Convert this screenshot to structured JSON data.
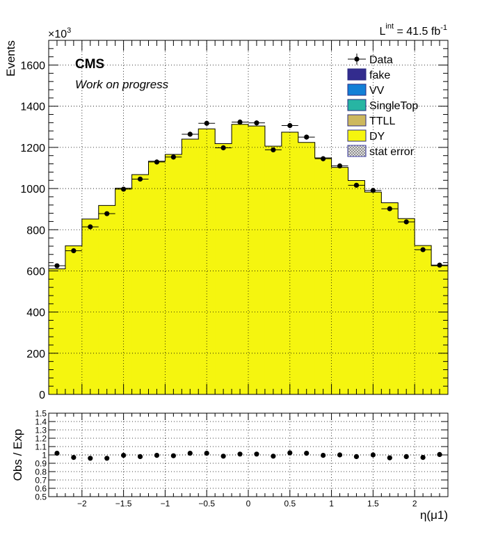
{
  "chart_data": [
    {
      "type": "bar",
      "subtype": "stacked-histogram-with-data-points",
      "title": "",
      "xlabel": "η(μ1)",
      "ylabel": "Events",
      "y_multiplier_label": "×10",
      "y_multiplier_exp": "3",
      "xlim": [
        -2.4,
        2.4
      ],
      "ylim": [
        0,
        1720
      ],
      "bin_edges": [
        -2.4,
        -2.2,
        -2.0,
        -1.8,
        -1.6,
        -1.4,
        -1.2,
        -1.0,
        -0.8,
        -0.6,
        -0.4,
        -0.2,
        0.0,
        0.2,
        0.4,
        0.6,
        0.8,
        1.0,
        1.2,
        1.4,
        1.6,
        1.8,
        2.0,
        2.2,
        2.4
      ],
      "x_ticks": [
        -2,
        -1.5,
        -1,
        -0.5,
        0,
        0.5,
        1,
        1.5,
        2
      ],
      "x_tick_labels": [
        "−2",
        "−1.5",
        "−1",
        "−0.5",
        "0",
        "0.5",
        "1",
        "1.5",
        "2"
      ],
      "y_ticks": [
        0,
        200,
        400,
        600,
        800,
        1000,
        1200,
        1400,
        1600
      ],
      "y_tick_labels": [
        "0",
        "200",
        "400",
        "600",
        "800",
        "1000",
        "1200",
        "1400",
        "1600"
      ],
      "series": [
        {
          "name": "DY",
          "color": "#f5f50f",
          "values": [
            610,
            722,
            852,
            918,
            1002,
            1068,
            1133,
            1166,
            1240,
            1290,
            1218,
            1312,
            1304,
            1206,
            1274,
            1224,
            1149,
            1103,
            1039,
            983,
            931,
            854,
            723,
            625
          ]
        },
        {
          "name": "TTLL",
          "color": "#cdb85e",
          "values": [
            0,
            0,
            0,
            0,
            0,
            0,
            0,
            0,
            0,
            0,
            0,
            0,
            0,
            0,
            0,
            0,
            0,
            0,
            0,
            0,
            0,
            0,
            0,
            0
          ]
        },
        {
          "name": "SingleTop",
          "color": "#27b5a3",
          "values": [
            0,
            0,
            0,
            0,
            0,
            0,
            0,
            0,
            0,
            0,
            0,
            0,
            0,
            0,
            0,
            0,
            0,
            0,
            0,
            0,
            0,
            0,
            0,
            0
          ]
        },
        {
          "name": "VV",
          "color": "#1280d6",
          "values": [
            0,
            0,
            0,
            0,
            0,
            0,
            0,
            0,
            0,
            0,
            0,
            0,
            0,
            0,
            0,
            0,
            0,
            0,
            0,
            0,
            0,
            0,
            0,
            0
          ]
        },
        {
          "name": "fake",
          "color": "#332c8e",
          "values": [
            0,
            0,
            0,
            0,
            0,
            0,
            0,
            0,
            0,
            0,
            0,
            0,
            0,
            0,
            0,
            0,
            0,
            0,
            0,
            0,
            0,
            0,
            0,
            0
          ]
        }
      ],
      "data_points": {
        "name": "Data",
        "values": [
          625,
          698,
          814,
          878,
          997,
          1046,
          1129,
          1153,
          1264,
          1317,
          1198,
          1323,
          1319,
          1188,
          1306,
          1250,
          1145,
          1110,
          1016,
          991,
          902,
          838,
          703,
          628
        ]
      },
      "legend": {
        "placement": "top-right",
        "entries": [
          {
            "label": "Data",
            "kind": "marker",
            "color": "#000000"
          },
          {
            "label": "fake",
            "kind": "fill",
            "color": "#332c8e"
          },
          {
            "label": "VV",
            "kind": "fill",
            "color": "#1280d6"
          },
          {
            "label": "SingleTop",
            "kind": "fill",
            "color": "#27b5a3"
          },
          {
            "label": "TTLL",
            "kind": "fill",
            "color": "#cdb85e"
          },
          {
            "label": "DY",
            "kind": "fill",
            "color": "#f5f50f"
          },
          {
            "label": "stat error",
            "kind": "hatch",
            "color": "#9e9e9e"
          }
        ]
      },
      "annotations": {
        "experiment": "CMS",
        "status": "Work on progress",
        "lumi_prefix": "L",
        "lumi_super": "int",
        "lumi_value": " = 41.5 fb",
        "lumi_unit_super": "-1"
      },
      "grid": true
    },
    {
      "type": "scatter",
      "title": "",
      "xlabel": "η(μ1)",
      "ylabel": "Obs / Exp",
      "xlim": [
        -2.4,
        2.4
      ],
      "ylim": [
        0.5,
        1.5
      ],
      "y_ticks": [
        0.5,
        0.6,
        0.7,
        0.8,
        0.9,
        1.0,
        1.1,
        1.2,
        1.3,
        1.4,
        1.5
      ],
      "y_tick_labels": [
        "0.5",
        "0.6",
        "0.7",
        "0.8",
        "0.9",
        "1",
        "1.1",
        "1.2",
        "1.3",
        "1.4",
        "1.5"
      ],
      "x": [
        -2.3,
        -2.1,
        -1.9,
        -1.7,
        -1.5,
        -1.3,
        -1.1,
        -0.9,
        -0.7,
        -0.5,
        -0.3,
        -0.1,
        0.1,
        0.3,
        0.5,
        0.7,
        0.9,
        1.1,
        1.3,
        1.5,
        1.7,
        1.9,
        2.1,
        2.3
      ],
      "values": [
        1.02,
        0.97,
        0.96,
        0.96,
        0.995,
        0.98,
        0.995,
        0.99,
        1.02,
        1.02,
        0.985,
        1.01,
        1.01,
        0.985,
        1.025,
        1.02,
        0.995,
        1.0,
        0.98,
        1.0,
        0.965,
        0.98,
        0.97,
        1.005
      ],
      "reference_line": 1.0,
      "grid": true
    }
  ]
}
